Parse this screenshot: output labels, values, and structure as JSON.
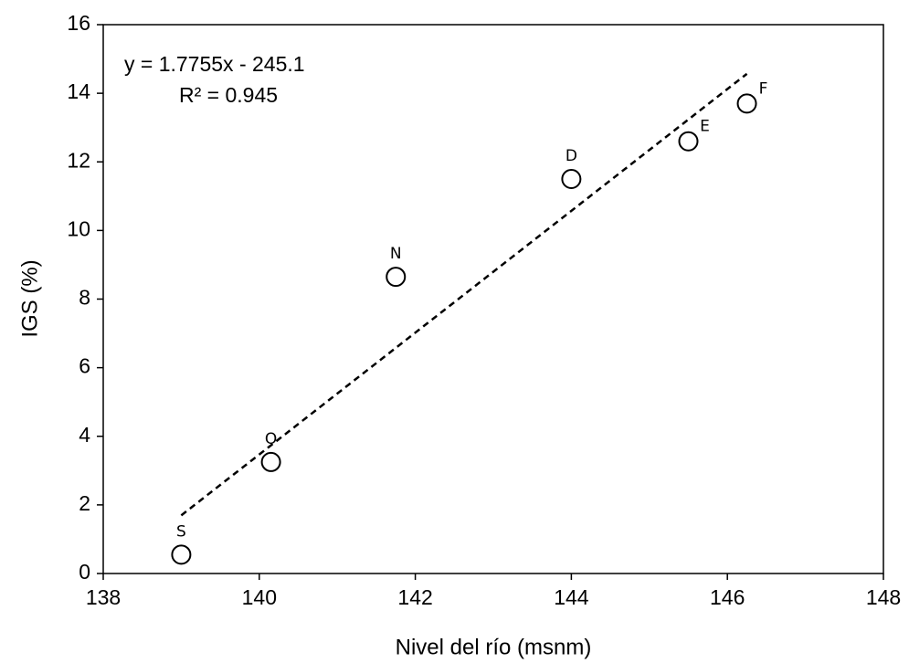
{
  "chart_data": {
    "type": "scatter",
    "xlabel": "Nivel del río (msnm)",
    "ylabel": "IGS (%)",
    "x": [
      139.0,
      140.15,
      141.75,
      144.0,
      145.5,
      146.25
    ],
    "values": [
      0.55,
      3.25,
      8.65,
      11.5,
      12.6,
      13.7
    ],
    "point_labels": [
      "S",
      "O",
      "N",
      "D",
      "E",
      "F"
    ],
    "marker": "open-circle",
    "color": "#000000",
    "xlim": [
      138,
      148
    ],
    "xticks": [
      138,
      140,
      142,
      144,
      146,
      148
    ],
    "ylim": [
      0,
      16
    ],
    "yticks": [
      0,
      2,
      4,
      6,
      8,
      10,
      12,
      14,
      16
    ],
    "grid": false,
    "trendline": {
      "slope": 1.7755,
      "intercept": -245.1,
      "equation": "y = 1.7755x - 245.1",
      "r2": "R² = 0.945",
      "style": "dashed"
    }
  }
}
